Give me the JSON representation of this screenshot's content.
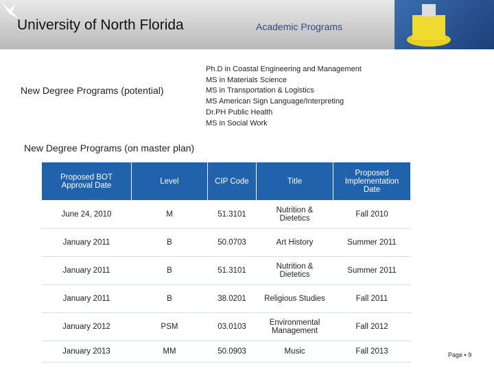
{
  "header": {
    "title": "University of North Florida",
    "subtitle": "Academic Programs"
  },
  "potential": {
    "label": "New Degree Programs (potential)",
    "items": [
      "Ph.D in Coastal Engineering and Management",
      "MS in Materials Science",
      "MS in Transportation & Logistics",
      "MS American Sign Language/Interpreting",
      "Dr.PH Public Health",
      "MS in Social Work"
    ]
  },
  "master_plan": {
    "label": "New Degree Programs (on master plan)",
    "table": {
      "columns": [
        "Proposed BOT Approval Date",
        "Level",
        "CIP Code",
        "Title",
        "Proposed Implementation Date"
      ],
      "rows": [
        [
          "June 24, 2010",
          "M",
          "51.3101",
          "Nutrition & Dietetics",
          "Fall 2010"
        ],
        [
          "January 2011",
          "B",
          "50.0703",
          "Art History",
          "Summer 2011"
        ],
        [
          "January 2011",
          "B",
          "51.3101",
          "Nutrition & Dietetics",
          "Summer 2011"
        ],
        [
          "January 2011",
          "B",
          "38.0201",
          "Religious Studies",
          "Fall 2011"
        ],
        [
          "January 2012",
          "PSM",
          "03.0103",
          "Environmental Management",
          "Fall 2012"
        ],
        [
          "January 2013",
          "MM",
          "50.0903",
          "Music",
          "Fall 2013"
        ]
      ]
    }
  },
  "footer": {
    "page": "Page ▪ 9"
  }
}
